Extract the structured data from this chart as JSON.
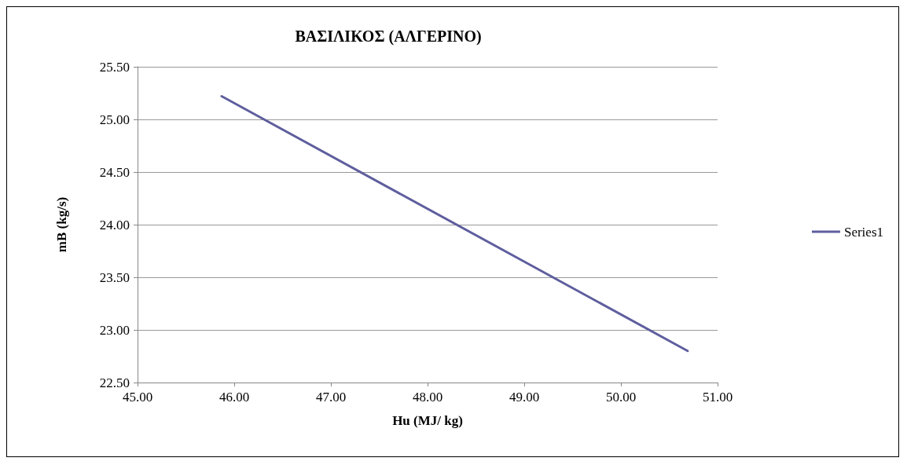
{
  "chart_data": {
    "type": "line",
    "title": "ΒΑΣΙΛΙΚΟΣ (ΑΛΓΕΡΙΝΟ)",
    "xlabel": "Hu (MJ/ kg)",
    "ylabel": "mB (kg/s)",
    "x": [
      45.87,
      50.69
    ],
    "series": [
      {
        "name": "Series1",
        "color": "#5e5e9e",
        "values": [
          25.22,
          22.8
        ]
      }
    ],
    "xlim": [
      45,
      51
    ],
    "xticks": [
      {
        "value": 45,
        "label": "45.00"
      },
      {
        "value": 46,
        "label": "46.00"
      },
      {
        "value": 47,
        "label": "47.00"
      },
      {
        "value": 48,
        "label": "48.00"
      },
      {
        "value": 49,
        "label": "49.00"
      },
      {
        "value": 50,
        "label": "50.00"
      },
      {
        "value": 51,
        "label": "51.00"
      }
    ],
    "ylim": [
      22.5,
      25.5
    ],
    "yticks": [
      {
        "value": 22.5,
        "label": "22.50"
      },
      {
        "value": 23,
        "label": "23.00"
      },
      {
        "value": 23.5,
        "label": "23.50"
      },
      {
        "value": 24,
        "label": "24.00"
      },
      {
        "value": 24.5,
        "label": "24.50"
      },
      {
        "value": 25,
        "label": "25.00"
      },
      {
        "value": 25.5,
        "label": "25.50"
      }
    ],
    "grid": "y",
    "legend": "right",
    "marker": "none",
    "line_style": "solid"
  }
}
